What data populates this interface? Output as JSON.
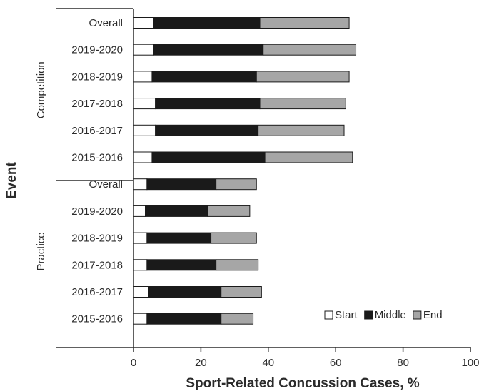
{
  "chart_data": {
    "type": "bar",
    "orientation": "horizontal",
    "stacked": true,
    "xlabel": "Sport-Related Concussion Cases, %",
    "ylabel": "Event",
    "xlim": [
      0,
      100
    ],
    "x_ticks": [
      "0",
      "20",
      "40",
      "60",
      "80",
      "100"
    ],
    "grid": false,
    "legend_position": "bottom-right",
    "series": [
      {
        "name": "Start",
        "color": "#ffffff"
      },
      {
        "name": "Middle",
        "color": "#1a1a1a"
      },
      {
        "name": "End",
        "color": "#a6a6a6"
      }
    ],
    "groups": [
      {
        "name": "Competition",
        "rows": [
          {
            "label": "Overall",
            "values": [
              6,
              31.5,
              26.5
            ]
          },
          {
            "label": "2019-2020",
            "values": [
              6,
              32.5,
              27.5
            ]
          },
          {
            "label": "2018-2019",
            "values": [
              5.5,
              31,
              27.5
            ]
          },
          {
            "label": "2017-2018",
            "values": [
              6.5,
              31,
              25.5
            ]
          },
          {
            "label": "2016-2017",
            "values": [
              6.5,
              30.5,
              25.5
            ]
          },
          {
            "label": "2015-2016",
            "values": [
              5.5,
              33.5,
              26
            ]
          }
        ]
      },
      {
        "name": "Practice",
        "rows": [
          {
            "label": "Overall",
            "values": [
              4,
              20.5,
              12
            ]
          },
          {
            "label": "2019-2020",
            "values": [
              3.5,
              18.5,
              12.5
            ]
          },
          {
            "label": "2018-2019",
            "values": [
              4,
              19,
              13.5
            ]
          },
          {
            "label": "2017-2018",
            "values": [
              4,
              20.5,
              12.5
            ]
          },
          {
            "label": "2016-2017",
            "values": [
              4.5,
              21.5,
              12
            ]
          },
          {
            "label": "2015-2016",
            "values": [
              4,
              22,
              9.5
            ]
          }
        ]
      }
    ]
  }
}
